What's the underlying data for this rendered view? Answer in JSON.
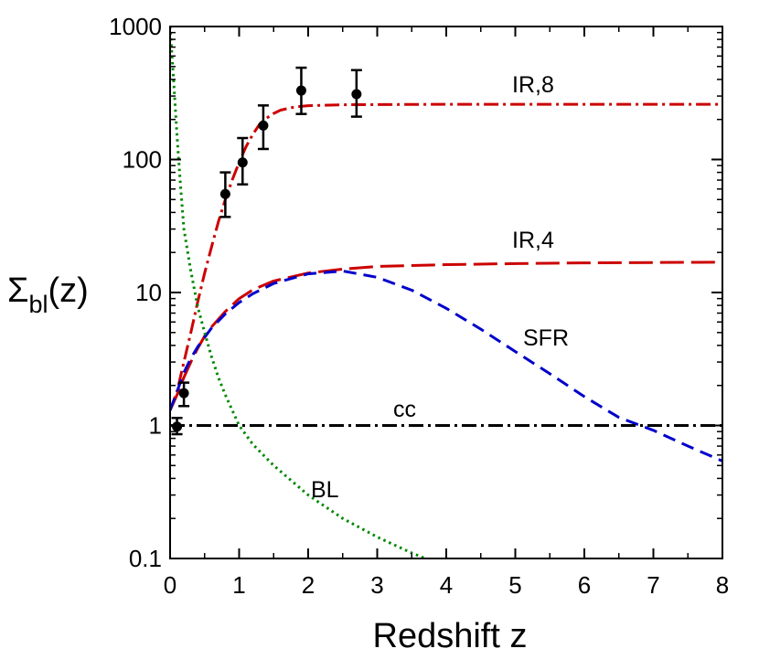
{
  "chart_data": {
    "type": "line",
    "xlabel": "Redshift z",
    "ylabel_main": "Σ",
    "ylabel_sub": "bl",
    "ylabel_tail": "(z)",
    "xlim": [
      0,
      8
    ],
    "ylim": [
      0.1,
      1000
    ],
    "yscale": "log",
    "grid": false,
    "x_ticks": [
      0,
      1,
      2,
      3,
      4,
      5,
      6,
      7,
      8
    ],
    "x_tick_labels": [
      "0",
      "1",
      "2",
      "3",
      "4",
      "5",
      "6",
      "7",
      "8"
    ],
    "y_ticks": [
      0.1,
      1,
      10,
      100,
      1000
    ],
    "y_tick_labels": [
      "0.1",
      "1",
      "10",
      "100",
      "1000"
    ],
    "series": [
      {
        "name": "IR,8",
        "color": "#cc0000",
        "style": "dash-dot",
        "x": [
          0,
          0.1,
          0.2,
          0.3,
          0.4,
          0.5,
          0.6,
          0.7,
          0.8,
          0.9,
          1.0,
          1.1,
          1.2,
          1.3,
          1.4,
          1.5,
          1.6,
          1.8,
          2.0,
          2.5,
          3,
          4,
          5,
          6,
          7,
          8
        ],
        "y": [
          1.3,
          1.8,
          3.0,
          5.0,
          8.5,
          14,
          22,
          34,
          50,
          70,
          95,
          125,
          155,
          185,
          205,
          222,
          235,
          248,
          254,
          258,
          259,
          260,
          260,
          260,
          260,
          260
        ]
      },
      {
        "name": "IR,4",
        "color": "#cc0000",
        "style": "long-dash",
        "x": [
          0,
          0.1,
          0.2,
          0.3,
          0.4,
          0.5,
          0.6,
          0.8,
          1.0,
          1.2,
          1.5,
          2.0,
          2.5,
          3.0,
          4,
          5,
          6,
          7,
          8
        ],
        "y": [
          1.3,
          1.7,
          2.3,
          3.0,
          3.8,
          4.7,
          5.5,
          7.2,
          9.0,
          10.5,
          12.2,
          14.0,
          15.0,
          15.7,
          16.2,
          16.5,
          16.7,
          16.8,
          16.9
        ]
      },
      {
        "name": "SFR",
        "color": "#0000cc",
        "style": "dash",
        "x": [
          0,
          0.1,
          0.2,
          0.3,
          0.4,
          0.5,
          0.6,
          0.8,
          1.0,
          1.2,
          1.5,
          2.0,
          2.5,
          3.0,
          3.5,
          4,
          4.5,
          5,
          5.5,
          6,
          6.5,
          7,
          7.5,
          8
        ],
        "y": [
          1.3,
          1.8,
          2.5,
          3.2,
          3.9,
          4.6,
          5.4,
          6.9,
          8.4,
          9.8,
          11.7,
          13.8,
          14.5,
          13.0,
          10.4,
          7.6,
          5.3,
          3.6,
          2.45,
          1.65,
          1.15,
          0.92,
          0.7,
          0.54
        ]
      },
      {
        "name": "cc",
        "color": "#000000",
        "style": "dash-dot",
        "x": [
          0,
          8
        ],
        "y": [
          1,
          1
        ]
      },
      {
        "name": "BL",
        "color": "#008800",
        "style": "dot",
        "x": [
          0,
          0.05,
          0.1,
          0.15,
          0.2,
          0.3,
          0.4,
          0.5,
          0.6,
          0.7,
          0.8,
          1.0,
          1.2,
          1.5,
          2.0,
          2.5,
          3.0,
          3.5,
          3.7
        ],
        "y": [
          1000,
          400,
          150,
          65,
          30,
          14.5,
          7.8,
          5.0,
          3.3,
          2.3,
          1.7,
          1.0,
          0.72,
          0.5,
          0.3,
          0.2,
          0.145,
          0.11,
          0.1
        ]
      }
    ],
    "data_points": {
      "x": [
        0.1,
        0.2,
        0.8,
        1.05,
        1.35,
        1.9,
        2.7
      ],
      "y": [
        0.98,
        1.75,
        55,
        95,
        180,
        330,
        310
      ],
      "y_err_low": [
        0.86,
        1.4,
        37,
        65,
        120,
        220,
        210
      ],
      "y_err_high": [
        1.14,
        2.1,
        80,
        145,
        255,
        490,
        470
      ]
    },
    "annotations": [
      {
        "text": "IR,8",
        "series": "IR,8"
      },
      {
        "text": "IR,4",
        "series": "IR,4"
      },
      {
        "text": "SFR",
        "series": "SFR"
      },
      {
        "text": "cc",
        "series": "cc"
      },
      {
        "text": "BL",
        "series": "BL"
      }
    ]
  }
}
